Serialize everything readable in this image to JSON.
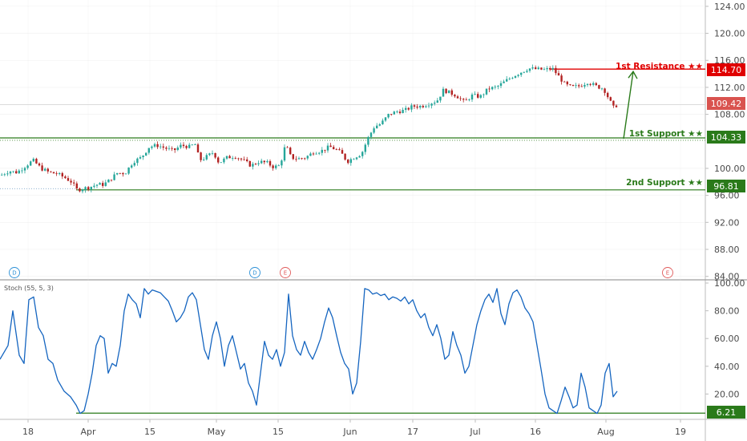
{
  "chart_data": [
    {
      "type": "candlestick",
      "y_ticks": [
        "124.00",
        "120.00",
        "116.00",
        "112.00",
        "108.00",
        "100.00",
        "96.00",
        "92.00",
        "88.00",
        "84.00"
      ],
      "ylim": [
        82.5,
        126
      ],
      "current_price": "109.42",
      "levels": [
        {
          "id": "resistance1",
          "label": "1st Resistance ★★",
          "value": 114.7,
          "badge": "114.70",
          "color": "#e00000"
        },
        {
          "id": "support1",
          "label": "1st Support ★★",
          "value": 104.33,
          "badge": "104.33",
          "color": "#2a7a1a"
        },
        {
          "id": "support2",
          "label": "2nd Support ★★",
          "value": 96.81,
          "badge": "96.81",
          "color": "#2a7a1a"
        }
      ],
      "price_path": [
        [
          0,
          99.0
        ],
        [
          10,
          99.6
        ],
        [
          20,
          99.4
        ],
        [
          30,
          100.3
        ],
        [
          40,
          101.2
        ],
        [
          50,
          100.0
        ],
        [
          60,
          99.4
        ],
        [
          70,
          99.2
        ],
        [
          80,
          98.6
        ],
        [
          88,
          98.0
        ],
        [
          95,
          96.8
        ],
        [
          102,
          97.0
        ],
        [
          110,
          97.2
        ],
        [
          120,
          97.6
        ],
        [
          128,
          97.6
        ],
        [
          135,
          98.2
        ],
        [
          145,
          99.3
        ],
        [
          155,
          99.3
        ],
        [
          165,
          101.0
        ],
        [
          175,
          101.6
        ],
        [
          185,
          103.2
        ],
        [
          195,
          103.4
        ],
        [
          205,
          103.0
        ],
        [
          215,
          102.6
        ],
        [
          225,
          103.4
        ],
        [
          235,
          103.2
        ],
        [
          242,
          103.6
        ],
        [
          248,
          101.2
        ],
        [
          255,
          101.6
        ],
        [
          265,
          102.4
        ],
        [
          272,
          100.8
        ],
        [
          282,
          101.6
        ],
        [
          292,
          101.8
        ],
        [
          302,
          101.2
        ],
        [
          312,
          100.4
        ],
        [
          322,
          101.0
        ],
        [
          332,
          100.8
        ],
        [
          340,
          100.2
        ],
        [
          348,
          100.4
        ],
        [
          355,
          103.5
        ],
        [
          362,
          101.6
        ],
        [
          370,
          101.4
        ],
        [
          380,
          101.6
        ],
        [
          390,
          102.4
        ],
        [
          400,
          102.6
        ],
        [
          410,
          103.2
        ],
        [
          418,
          102.8
        ],
        [
          425,
          102.2
        ],
        [
          432,
          101.0
        ],
        [
          440,
          101.6
        ],
        [
          450,
          102.2
        ],
        [
          458,
          104.5
        ],
        [
          466,
          106.2
        ],
        [
          474,
          106.6
        ],
        [
          484,
          108.0
        ],
        [
          494,
          108.4
        ],
        [
          504,
          108.6
        ],
        [
          514,
          109.2
        ],
        [
          524,
          109.2
        ],
        [
          534,
          109.6
        ],
        [
          544,
          110.0
        ],
        [
          552,
          111.6
        ],
        [
          560,
          111.2
        ],
        [
          568,
          110.8
        ],
        [
          578,
          109.8
        ],
        [
          588,
          110.8
        ],
        [
          598,
          110.6
        ],
        [
          608,
          111.8
        ],
        [
          618,
          112.0
        ],
        [
          628,
          112.8
        ],
        [
          638,
          113.6
        ],
        [
          648,
          114.2
        ],
        [
          658,
          114.8
        ],
        [
          668,
          114.7
        ],
        [
          678,
          114.6
        ],
        [
          688,
          114.8
        ],
        [
          696,
          113.6
        ],
        [
          704,
          112.4
        ],
        [
          712,
          112.0
        ],
        [
          722,
          112.2
        ],
        [
          732,
          112.8
        ],
        [
          742,
          112.2
        ],
        [
          752,
          111.8
        ],
        [
          758,
          110.4
        ],
        [
          764,
          109.0
        ],
        [
          770,
          109.5
        ]
      ]
    },
    {
      "type": "line",
      "title": "Stoch (55, 5, 3)",
      "y_ticks": [
        "100.00",
        "80.00",
        "60.00",
        "40.00",
        "20.00"
      ],
      "ylim": [
        0,
        100
      ],
      "support_value": 6.21,
      "support_badge": "6.21",
      "x": [
        0,
        10,
        16,
        24,
        30,
        36,
        42,
        48,
        54,
        60,
        66,
        72,
        80,
        88,
        95,
        100,
        105,
        110,
        115,
        120,
        125,
        130,
        135,
        140,
        145,
        150,
        155,
        160,
        165,
        170,
        175,
        180,
        185,
        190,
        195,
        200,
        205,
        210,
        215,
        220,
        225,
        230,
        235,
        240,
        245,
        250,
        255,
        260,
        265,
        270,
        275,
        280,
        285,
        290,
        295,
        300,
        305,
        310,
        315,
        320,
        325,
        330,
        335,
        340,
        345,
        350,
        355,
        360,
        365,
        370,
        375,
        380,
        385,
        390,
        395,
        400,
        405,
        410,
        415,
        420,
        425,
        430,
        435,
        440,
        445,
        450,
        455,
        460,
        465,
        470,
        475,
        480,
        485,
        490,
        495,
        500,
        505,
        510,
        515,
        520,
        525,
        530,
        535,
        540,
        545,
        550,
        555,
        560,
        565,
        570,
        575,
        580,
        585,
        590,
        595,
        600,
        605,
        610,
        615,
        620,
        625,
        630,
        635,
        640,
        645,
        650,
        655,
        660,
        665,
        670,
        675,
        680,
        685,
        690,
        695,
        700,
        705,
        710,
        715,
        720,
        725,
        730,
        735,
        740,
        745,
        750,
        755,
        760,
        765,
        770
      ],
      "values": [
        45,
        55,
        80,
        48,
        42,
        88,
        90,
        68,
        62,
        45,
        42,
        30,
        22,
        18,
        12,
        6,
        8,
        20,
        35,
        55,
        62,
        60,
        35,
        42,
        40,
        55,
        80,
        92,
        88,
        85,
        75,
        96,
        92,
        95,
        94,
        93,
        90,
        87,
        80,
        72,
        75,
        80,
        90,
        93,
        88,
        70,
        52,
        45,
        62,
        72,
        60,
        40,
        55,
        62,
        50,
        38,
        42,
        28,
        22,
        12,
        35,
        58,
        48,
        45,
        52,
        40,
        50,
        92,
        62,
        52,
        48,
        58,
        50,
        45,
        52,
        60,
        72,
        82,
        75,
        62,
        50,
        42,
        38,
        20,
        28,
        58,
        96,
        95,
        92,
        93,
        91,
        92,
        88,
        90,
        89,
        87,
        90,
        85,
        88,
        80,
        75,
        78,
        68,
        62,
        70,
        60,
        45,
        48,
        65,
        55,
        48,
        35,
        40,
        55,
        70,
        80,
        88,
        92,
        86,
        96,
        78,
        70,
        85,
        93,
        95,
        90,
        82,
        78,
        72,
        55,
        38,
        20,
        10,
        8,
        6,
        15,
        25,
        18,
        10,
        12,
        35,
        25,
        10,
        8,
        6,
        12,
        35,
        42,
        18,
        22
      ]
    }
  ],
  "x_ticks": [
    "18",
    "Apr",
    "15",
    "May",
    "15",
    "Jun",
    "17",
    "Jul",
    "16",
    "Aug",
    "19"
  ],
  "markers": [
    {
      "letter": "D",
      "type": "dividend"
    },
    {
      "letter": "D",
      "type": "dividend"
    },
    {
      "letter": "E",
      "type": "earnings"
    },
    {
      "letter": "E",
      "type": "earnings"
    }
  ],
  "colors": {
    "up": "#26a69a",
    "down": "#b22222",
    "stoch": "#1565c0",
    "current": "#d9534f",
    "resistance": "#e00000",
    "support": "#2a7a1a",
    "axis": "#4a4a4a",
    "grid": "#e6e6e6"
  }
}
